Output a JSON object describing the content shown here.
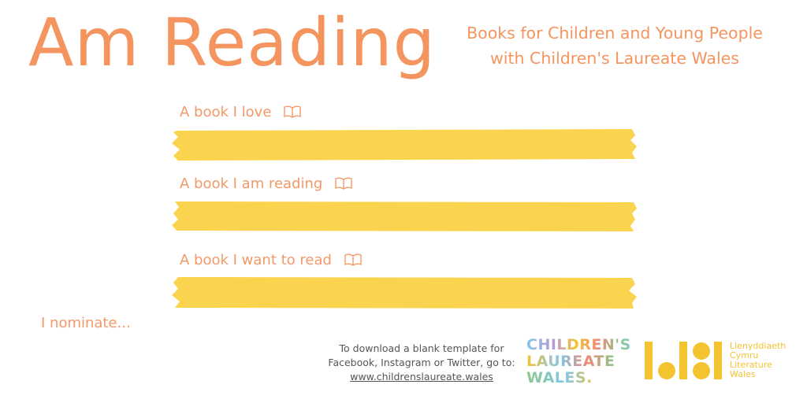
{
  "header": {
    "title": "Am Reading",
    "subtitle_line1": "Books for Children and Young People",
    "subtitle_line2": "with Children's Laureate Wales"
  },
  "entries": [
    {
      "label": "A book I love",
      "icon": "open-book-icon"
    },
    {
      "label": "A book I am reading",
      "icon": "open-book-icon"
    },
    {
      "label": "A book I want to read",
      "icon": "open-book-icon"
    }
  ],
  "nominate": "I nominate...",
  "footer": {
    "download_line1": "To download a blank template for",
    "download_line2": "Facebook, Instagram or Twitter, go to:",
    "download_link": "www.childrenslaureate.wales"
  },
  "logos": {
    "clw_line1": "CHILDREN'S",
    "clw_line2": "LAUREATE",
    "clw_line3": "WALES.",
    "lit_line1": "Llenyddiaeth",
    "lit_line2": "Cymru",
    "lit_line3": "Literature",
    "lit_line4": "Wales"
  },
  "colors": {
    "accent_orange": "#f4955f",
    "highlight_yellow": "#fbd44f",
    "logo_yellow": "#f4c430"
  }
}
